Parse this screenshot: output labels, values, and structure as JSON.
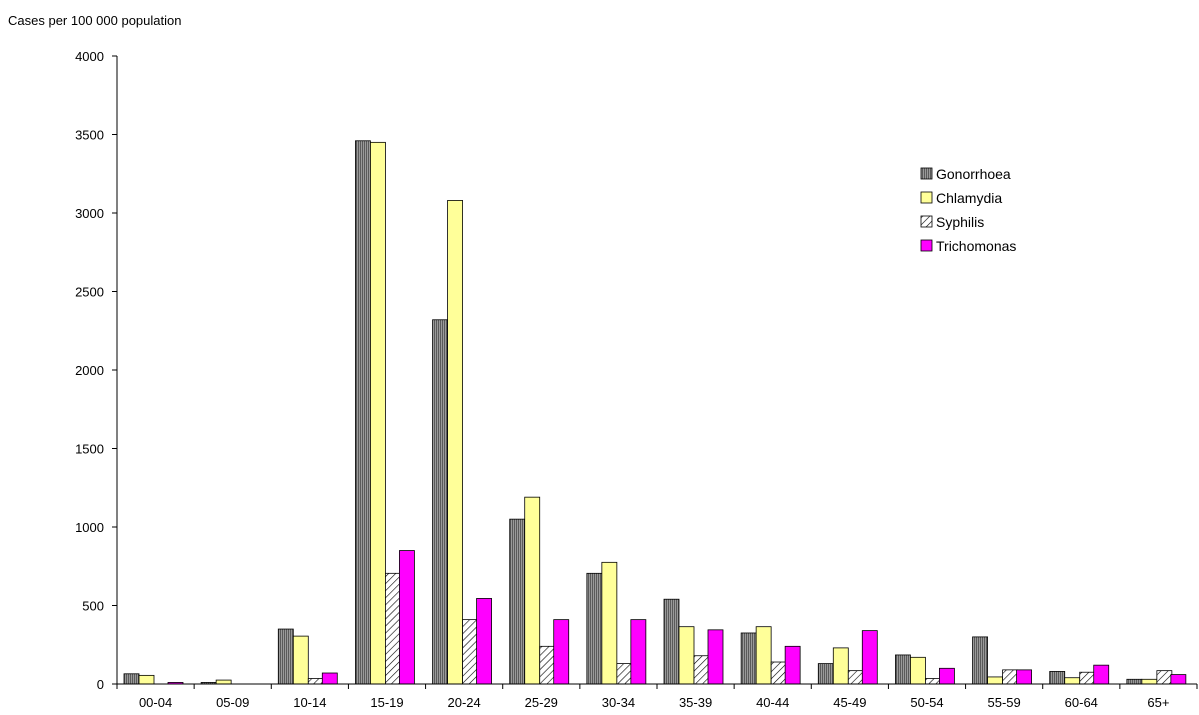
{
  "chart_data": {
    "type": "bar",
    "ylabel": "Cases per 100 000 population",
    "ylim": [
      0,
      4000
    ],
    "yticks": [
      0,
      500,
      1000,
      1500,
      2000,
      2500,
      3000,
      3500,
      4000
    ],
    "categories": [
      "00-04",
      "05-09",
      "10-14",
      "15-19",
      "20-24",
      "25-29",
      "30-34",
      "35-39",
      "40-44",
      "45-49",
      "50-54",
      "55-59",
      "60-64",
      "65+"
    ],
    "series": [
      {
        "name": "Gonorrhoea",
        "values": [
          65,
          10,
          350,
          3460,
          2320,
          1050,
          705,
          540,
          325,
          130,
          185,
          300,
          80,
          30
        ]
      },
      {
        "name": "Chlamydia",
        "values": [
          55,
          25,
          305,
          3450,
          3080,
          1190,
          775,
          365,
          365,
          230,
          170,
          45,
          40,
          30
        ]
      },
      {
        "name": "Syphilis",
        "values": [
          0,
          0,
          35,
          705,
          410,
          240,
          130,
          180,
          140,
          85,
          35,
          90,
          75,
          85
        ]
      },
      {
        "name": "Trichomonas",
        "values": [
          10,
          0,
          70,
          850,
          545,
          410,
          410,
          345,
          240,
          340,
          100,
          90,
          120,
          60
        ]
      }
    ],
    "legend_position": "top-right",
    "grid": false,
    "colors": {
      "Gonorrhoea": "#8c8c8c",
      "Chlamydia": "#ffff99",
      "Syphilis": "#ffffff",
      "Trichomonas": "#ff00ff"
    }
  }
}
